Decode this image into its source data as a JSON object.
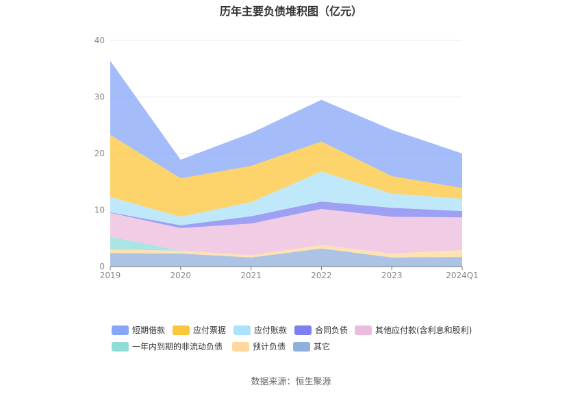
{
  "chart_data": {
    "type": "area",
    "stacked": true,
    "title": "历年主要负债堆积图（亿元）",
    "categories": [
      "2019",
      "2020",
      "2021",
      "2022",
      "2023",
      "2024Q1"
    ],
    "ylim": [
      0,
      40
    ],
    "yticks": [
      0,
      10,
      20,
      30,
      40
    ],
    "grid": true,
    "legend_position": "bottom",
    "series": [
      {
        "name": "其它",
        "color": "#8fb0dc",
        "values": [
          2.4,
          2.3,
          1.6,
          3.2,
          1.6,
          1.7
        ]
      },
      {
        "name": "预计负债",
        "color": "#ffd89b",
        "values": [
          0.6,
          0.5,
          0.4,
          0.6,
          0.7,
          1.2
        ]
      },
      {
        "name": "一年内到期的非流动负债",
        "color": "#8fdcd9",
        "values": [
          2.3,
          0,
          0,
          0,
          0,
          0
        ]
      },
      {
        "name": "其他应付款(含利息和股利)",
        "color": "#ebbcdc",
        "values": [
          4.2,
          4.0,
          5.6,
          6.4,
          6.5,
          5.8
        ]
      },
      {
        "name": "合同负债",
        "color": "#7d80f0",
        "values": [
          0.1,
          0.5,
          1.3,
          1.3,
          1.6,
          1.1
        ]
      },
      {
        "name": "应付账款",
        "color": "#a9e2fa",
        "values": [
          2.7,
          1.5,
          2.5,
          5.3,
          2.5,
          2.2
        ]
      },
      {
        "name": "应付票据",
        "color": "#fcc63a",
        "values": [
          11.0,
          6.8,
          6.4,
          5.3,
          3.1,
          1.9
        ]
      },
      {
        "name": "短期借款",
        "color": "#86a6f8",
        "values": [
          13.1,
          3.3,
          5.8,
          7.4,
          8.2,
          6.1
        ]
      }
    ]
  },
  "legend_order": [
    "短期借款",
    "应付票据",
    "应付账款",
    "合同负债",
    "其他应付款(含利息和股利)",
    "一年内到期的非流动负债",
    "预计负债",
    "其它"
  ],
  "source": "数据来源：恒生聚源"
}
